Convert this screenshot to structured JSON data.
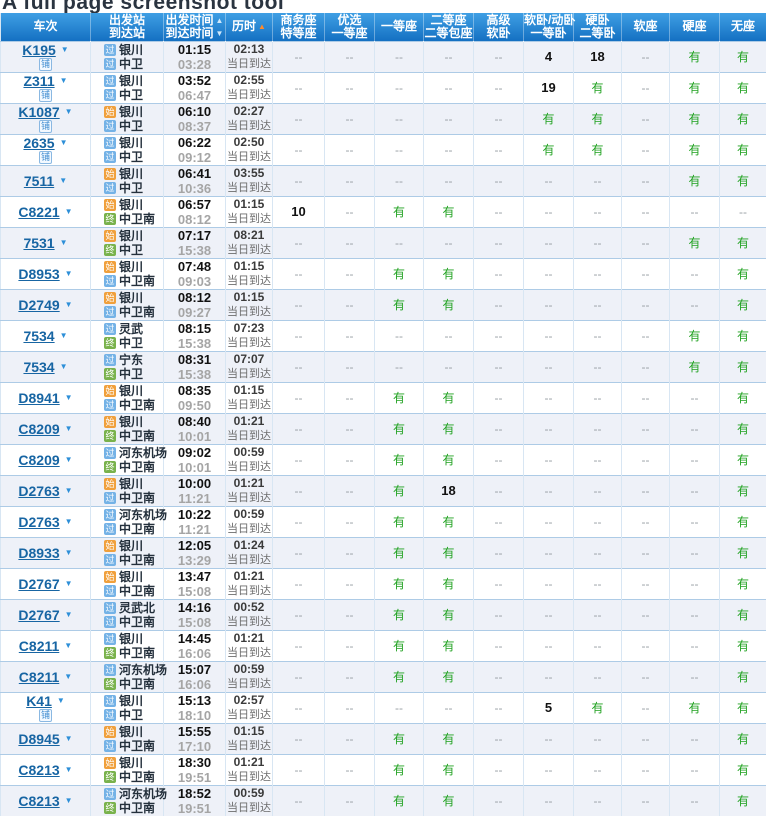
{
  "page": {
    "title": "A full page screenshot tool"
  },
  "icons": {
    "sort_asc": "▲",
    "sort_desc": "▼",
    "caret_down": "▼",
    "service_badge": "铺"
  },
  "colors": {
    "header_blue": "#1e82d2",
    "sort_arrow_orange": "#ff8a2b",
    "train_link": "#1765a3",
    "available_green": "#1fa11f",
    "station_start": "#f0a03c",
    "station_pass": "#74b2e6",
    "station_end": "#79b24c",
    "alt_row": "#eef1f8"
  },
  "table": {
    "columns": [
      {
        "id": "checi",
        "lines": [
          "车次"
        ],
        "sortable": false
      },
      {
        "id": "stations",
        "lines": [
          "出发站",
          "到达站"
        ],
        "sortable": false
      },
      {
        "id": "times",
        "lines": [
          "出发时间",
          "到达时间"
        ],
        "sorts": [
          "asc-light",
          "desc-light"
        ],
        "sortable": true
      },
      {
        "id": "duration",
        "lines": [
          "历时"
        ],
        "sorts": [
          "asc-orange"
        ],
        "sortable": true
      },
      {
        "id": "business-seat",
        "lines": [
          "商务座",
          "特等座"
        ],
        "sortable": false
      },
      {
        "id": "preferred-first-seat",
        "lines": [
          "优选",
          "一等座"
        ],
        "sortable": false
      },
      {
        "id": "first-seat",
        "lines": [
          "一等座"
        ],
        "sortable": false
      },
      {
        "id": "second-seat",
        "lines": [
          "二等座",
          "二等包座"
        ],
        "sortable": false
      },
      {
        "id": "premium-soft-sleeper",
        "lines": [
          "高级",
          "软卧"
        ],
        "sortable": false
      },
      {
        "id": "soft-sleeper",
        "lines": [
          "软卧/动卧",
          "一等卧"
        ],
        "sortable": false
      },
      {
        "id": "hard-sleeper",
        "lines": [
          "硬卧",
          "二等卧"
        ],
        "sortable": false
      },
      {
        "id": "soft-seat",
        "lines": [
          "软座"
        ],
        "sortable": false
      },
      {
        "id": "hard-seat",
        "lines": [
          "硬座"
        ],
        "sortable": false
      },
      {
        "id": "no-seat",
        "lines": [
          "无座"
        ],
        "sortable": false
      }
    ],
    "rows": [
      {
        "train": "K195",
        "badge": true,
        "from_type": "过",
        "from": "银川",
        "to_type": "过",
        "to": "中卫",
        "dep": "01:15",
        "arr": "03:28",
        "dur": "02:13",
        "note": "当日到达",
        "seats": [
          "--",
          "--",
          "--",
          "--",
          "--",
          "4",
          "18",
          "--",
          "有",
          "有"
        ]
      },
      {
        "train": "Z311",
        "badge": true,
        "from_type": "过",
        "from": "银川",
        "to_type": "过",
        "to": "中卫",
        "dep": "03:52",
        "arr": "06:47",
        "dur": "02:55",
        "note": "当日到达",
        "seats": [
          "--",
          "--",
          "--",
          "--",
          "--",
          "19",
          "有",
          "--",
          "有",
          "有"
        ]
      },
      {
        "train": "K1087",
        "badge": true,
        "from_type": "始",
        "from": "银川",
        "to_type": "过",
        "to": "中卫",
        "dep": "06:10",
        "arr": "08:37",
        "dur": "02:27",
        "note": "当日到达",
        "seats": [
          "--",
          "--",
          "--",
          "--",
          "--",
          "有",
          "有",
          "--",
          "有",
          "有"
        ]
      },
      {
        "train": "2635",
        "badge": true,
        "from_type": "过",
        "from": "银川",
        "to_type": "过",
        "to": "中卫",
        "dep": "06:22",
        "arr": "09:12",
        "dur": "02:50",
        "note": "当日到达",
        "seats": [
          "--",
          "--",
          "--",
          "--",
          "--",
          "有",
          "有",
          "--",
          "有",
          "有"
        ]
      },
      {
        "train": "7511",
        "badge": false,
        "from_type": "始",
        "from": "银川",
        "to_type": "过",
        "to": "中卫",
        "dep": "06:41",
        "arr": "10:36",
        "dur": "03:55",
        "note": "当日到达",
        "seats": [
          "--",
          "--",
          "--",
          "--",
          "--",
          "--",
          "--",
          "--",
          "有",
          "有"
        ]
      },
      {
        "train": "C8221",
        "badge": false,
        "from_type": "始",
        "from": "银川",
        "to_type": "终",
        "to": "中卫南",
        "dep": "06:57",
        "arr": "08:12",
        "dur": "01:15",
        "note": "当日到达",
        "seats": [
          "10",
          "--",
          "有",
          "有",
          "--",
          "--",
          "--",
          "--",
          "--",
          "--"
        ]
      },
      {
        "train": "7531",
        "badge": false,
        "from_type": "始",
        "from": "银川",
        "to_type": "终",
        "to": "中卫",
        "dep": "07:17",
        "arr": "15:38",
        "dur": "08:21",
        "note": "当日到达",
        "seats": [
          "--",
          "--",
          "--",
          "--",
          "--",
          "--",
          "--",
          "--",
          "有",
          "有"
        ]
      },
      {
        "train": "D8953",
        "badge": false,
        "from_type": "始",
        "from": "银川",
        "to_type": "过",
        "to": "中卫南",
        "dep": "07:48",
        "arr": "09:03",
        "dur": "01:15",
        "note": "当日到达",
        "seats": [
          "--",
          "--",
          "有",
          "有",
          "--",
          "--",
          "--",
          "--",
          "--",
          "有"
        ]
      },
      {
        "train": "D2749",
        "badge": false,
        "from_type": "始",
        "from": "银川",
        "to_type": "过",
        "to": "中卫南",
        "dep": "08:12",
        "arr": "09:27",
        "dur": "01:15",
        "note": "当日到达",
        "seats": [
          "--",
          "--",
          "有",
          "有",
          "--",
          "--",
          "--",
          "--",
          "--",
          "有"
        ]
      },
      {
        "train": "7534",
        "badge": false,
        "from_type": "过",
        "from": "灵武",
        "to_type": "终",
        "to": "中卫",
        "dep": "08:15",
        "arr": "15:38",
        "dur": "07:23",
        "note": "当日到达",
        "seats": [
          "--",
          "--",
          "--",
          "--",
          "--",
          "--",
          "--",
          "--",
          "有",
          "有"
        ]
      },
      {
        "train": "7534",
        "badge": false,
        "from_type": "过",
        "from": "宁东",
        "to_type": "终",
        "to": "中卫",
        "dep": "08:31",
        "arr": "15:38",
        "dur": "07:07",
        "note": "当日到达",
        "seats": [
          "--",
          "--",
          "--",
          "--",
          "--",
          "--",
          "--",
          "--",
          "有",
          "有"
        ]
      },
      {
        "train": "D8941",
        "badge": false,
        "from_type": "始",
        "from": "银川",
        "to_type": "过",
        "to": "中卫南",
        "dep": "08:35",
        "arr": "09:50",
        "dur": "01:15",
        "note": "当日到达",
        "seats": [
          "--",
          "--",
          "有",
          "有",
          "--",
          "--",
          "--",
          "--",
          "--",
          "有"
        ]
      },
      {
        "train": "C8209",
        "badge": false,
        "from_type": "始",
        "from": "银川",
        "to_type": "终",
        "to": "中卫南",
        "dep": "08:40",
        "arr": "10:01",
        "dur": "01:21",
        "note": "当日到达",
        "seats": [
          "--",
          "--",
          "有",
          "有",
          "--",
          "--",
          "--",
          "--",
          "--",
          "有"
        ]
      },
      {
        "train": "C8209",
        "badge": false,
        "from_type": "过",
        "from": "河东机场",
        "to_type": "终",
        "to": "中卫南",
        "dep": "09:02",
        "arr": "10:01",
        "dur": "00:59",
        "note": "当日到达",
        "seats": [
          "--",
          "--",
          "有",
          "有",
          "--",
          "--",
          "--",
          "--",
          "--",
          "有"
        ]
      },
      {
        "train": "D2763",
        "badge": false,
        "from_type": "始",
        "from": "银川",
        "to_type": "过",
        "to": "中卫南",
        "dep": "10:00",
        "arr": "11:21",
        "dur": "01:21",
        "note": "当日到达",
        "seats": [
          "--",
          "--",
          "有",
          "18",
          "--",
          "--",
          "--",
          "--",
          "--",
          "有"
        ]
      },
      {
        "train": "D2763",
        "badge": false,
        "from_type": "过",
        "from": "河东机场",
        "to_type": "过",
        "to": "中卫南",
        "dep": "10:22",
        "arr": "11:21",
        "dur": "00:59",
        "note": "当日到达",
        "seats": [
          "--",
          "--",
          "有",
          "有",
          "--",
          "--",
          "--",
          "--",
          "--",
          "有"
        ]
      },
      {
        "train": "D8933",
        "badge": false,
        "from_type": "始",
        "from": "银川",
        "to_type": "过",
        "to": "中卫南",
        "dep": "12:05",
        "arr": "13:29",
        "dur": "01:24",
        "note": "当日到达",
        "seats": [
          "--",
          "--",
          "有",
          "有",
          "--",
          "--",
          "--",
          "--",
          "--",
          "有"
        ]
      },
      {
        "train": "D2767",
        "badge": false,
        "from_type": "始",
        "from": "银川",
        "to_type": "过",
        "to": "中卫南",
        "dep": "13:47",
        "arr": "15:08",
        "dur": "01:21",
        "note": "当日到达",
        "seats": [
          "--",
          "--",
          "有",
          "有",
          "--",
          "--",
          "--",
          "--",
          "--",
          "有"
        ]
      },
      {
        "train": "D2767",
        "badge": false,
        "from_type": "过",
        "from": "灵武北",
        "to_type": "过",
        "to": "中卫南",
        "dep": "14:16",
        "arr": "15:08",
        "dur": "00:52",
        "note": "当日到达",
        "seats": [
          "--",
          "--",
          "有",
          "有",
          "--",
          "--",
          "--",
          "--",
          "--",
          "有"
        ]
      },
      {
        "train": "C8211",
        "badge": false,
        "from_type": "过",
        "from": "银川",
        "to_type": "终",
        "to": "中卫南",
        "dep": "14:45",
        "arr": "16:06",
        "dur": "01:21",
        "note": "当日到达",
        "seats": [
          "--",
          "--",
          "有",
          "有",
          "--",
          "--",
          "--",
          "--",
          "--",
          "有"
        ]
      },
      {
        "train": "C8211",
        "badge": false,
        "from_type": "过",
        "from": "河东机场",
        "to_type": "终",
        "to": "中卫南",
        "dep": "15:07",
        "arr": "16:06",
        "dur": "00:59",
        "note": "当日到达",
        "seats": [
          "--",
          "--",
          "有",
          "有",
          "--",
          "--",
          "--",
          "--",
          "--",
          "有"
        ]
      },
      {
        "train": "K41",
        "badge": true,
        "from_type": "过",
        "from": "银川",
        "to_type": "过",
        "to": "中卫",
        "dep": "15:13",
        "arr": "18:10",
        "dur": "02:57",
        "note": "当日到达",
        "seats": [
          "--",
          "--",
          "--",
          "--",
          "--",
          "5",
          "有",
          "--",
          "有",
          "有"
        ]
      },
      {
        "train": "D8945",
        "badge": false,
        "from_type": "始",
        "from": "银川",
        "to_type": "过",
        "to": "中卫南",
        "dep": "15:55",
        "arr": "17:10",
        "dur": "01:15",
        "note": "当日到达",
        "seats": [
          "--",
          "--",
          "有",
          "有",
          "--",
          "--",
          "--",
          "--",
          "--",
          "有"
        ]
      },
      {
        "train": "C8213",
        "badge": false,
        "from_type": "始",
        "from": "银川",
        "to_type": "终",
        "to": "中卫南",
        "dep": "18:30",
        "arr": "19:51",
        "dur": "01:21",
        "note": "当日到达",
        "seats": [
          "--",
          "--",
          "有",
          "有",
          "--",
          "--",
          "--",
          "--",
          "--",
          "有"
        ]
      },
      {
        "train": "C8213",
        "badge": false,
        "from_type": "过",
        "from": "河东机场",
        "to_type": "终",
        "to": "中卫南",
        "dep": "18:52",
        "arr": "19:51",
        "dur": "00:59",
        "note": "当日到达",
        "seats": [
          "--",
          "--",
          "有",
          "有",
          "--",
          "--",
          "--",
          "--",
          "--",
          "有"
        ]
      }
    ]
  }
}
